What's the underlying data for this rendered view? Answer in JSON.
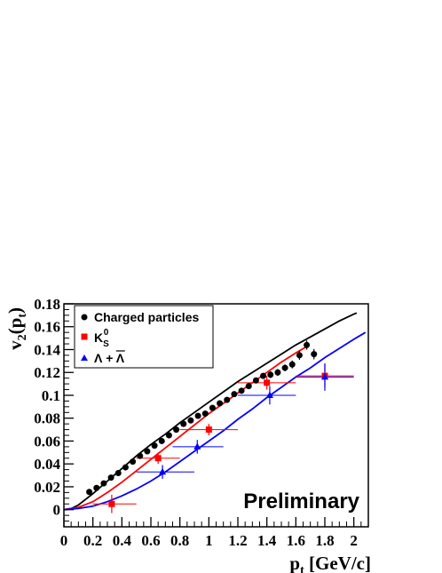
{
  "chart_data": {
    "type": "scatter",
    "annotation": "Preliminary",
    "xlabel": {
      "main": "p",
      "sub": "t",
      "unit": " [GeV/c]"
    },
    "ylabel": {
      "main": "v",
      "sub1": "2",
      "paren_open": "(p",
      "sub2": "t",
      "paren_close": ")"
    },
    "xlim": [
      0,
      2.1
    ],
    "ylim": [
      -0.015,
      0.18
    ],
    "xticks": [
      0,
      0.2,
      0.4,
      0.6,
      0.8,
      1,
      1.2,
      1.4,
      1.6,
      1.8,
      2
    ],
    "xtick_labels": [
      "0",
      "0.2",
      "0.4",
      "0.6",
      "0.8",
      "1",
      "1.2",
      "1.4",
      "1.6",
      "1.8",
      "2"
    ],
    "yticks": [
      0,
      0.02,
      0.04,
      0.06,
      0.08,
      0.1,
      0.12,
      0.14,
      0.16,
      0.18
    ],
    "ytick_labels": [
      "0",
      "0.02",
      "0.04",
      "0.06",
      "0.08",
      "0.1",
      "0.12",
      "0.14",
      "0.16",
      "0.18"
    ],
    "legend_position": "top-left",
    "series": [
      {
        "name": "Charged particles",
        "color": "#000000",
        "marker": "circle",
        "points": [
          {
            "x": 0.175,
            "y": 0.0155,
            "ey": 0.0015
          },
          {
            "x": 0.225,
            "y": 0.019,
            "ey": 0.0015
          },
          {
            "x": 0.275,
            "y": 0.023,
            "ey": 0.0015
          },
          {
            "x": 0.325,
            "y": 0.028,
            "ey": 0.0015
          },
          {
            "x": 0.375,
            "y": 0.032,
            "ey": 0.0015
          },
          {
            "x": 0.425,
            "y": 0.037,
            "ey": 0.0015
          },
          {
            "x": 0.475,
            "y": 0.042,
            "ey": 0.0015
          },
          {
            "x": 0.525,
            "y": 0.047,
            "ey": 0.0015
          },
          {
            "x": 0.575,
            "y": 0.051,
            "ey": 0.0015
          },
          {
            "x": 0.625,
            "y": 0.056,
            "ey": 0.0015
          },
          {
            "x": 0.675,
            "y": 0.06,
            "ey": 0.0015
          },
          {
            "x": 0.725,
            "y": 0.065,
            "ey": 0.0015
          },
          {
            "x": 0.775,
            "y": 0.07,
            "ey": 0.0015
          },
          {
            "x": 0.825,
            "y": 0.075,
            "ey": 0.0015
          },
          {
            "x": 0.875,
            "y": 0.078,
            "ey": 0.0015
          },
          {
            "x": 0.925,
            "y": 0.082,
            "ey": 0.0015
          },
          {
            "x": 0.975,
            "y": 0.084,
            "ey": 0.0015
          },
          {
            "x": 1.025,
            "y": 0.089,
            "ey": 0.0015
          },
          {
            "x": 1.075,
            "y": 0.093,
            "ey": 0.002
          },
          {
            "x": 1.125,
            "y": 0.096,
            "ey": 0.002
          },
          {
            "x": 1.175,
            "y": 0.101,
            "ey": 0.002
          },
          {
            "x": 1.225,
            "y": 0.104,
            "ey": 0.002
          },
          {
            "x": 1.275,
            "y": 0.108,
            "ey": 0.0025
          },
          {
            "x": 1.325,
            "y": 0.113,
            "ey": 0.0025
          },
          {
            "x": 1.375,
            "y": 0.117,
            "ey": 0.0025
          },
          {
            "x": 1.425,
            "y": 0.118,
            "ey": 0.003
          },
          {
            "x": 1.475,
            "y": 0.12,
            "ey": 0.003
          },
          {
            "x": 1.525,
            "y": 0.124,
            "ey": 0.003
          },
          {
            "x": 1.575,
            "y": 0.127,
            "ey": 0.0035
          },
          {
            "x": 1.625,
            "y": 0.135,
            "ey": 0.004
          },
          {
            "x": 1.675,
            "y": 0.144,
            "ey": 0.004
          },
          {
            "x": 1.725,
            "y": 0.136,
            "ey": 0.0045
          }
        ]
      },
      {
        "name": "K_S^0",
        "color": "#ff0000",
        "marker": "square",
        "points": [
          {
            "x": 0.33,
            "y": 0.005,
            "exl": 0.13,
            "exh": 0.17,
            "ey": 0.008
          },
          {
            "x": 0.65,
            "y": 0.045,
            "exl": 0.15,
            "exh": 0.15,
            "ey": 0.005
          },
          {
            "x": 1.0,
            "y": 0.07,
            "exl": 0.2,
            "exh": 0.2,
            "ey": 0.005
          },
          {
            "x": 1.4,
            "y": 0.111,
            "exl": 0.2,
            "exh": 0.2,
            "ey": 0.006
          },
          {
            "x": 1.8,
            "y": 0.117,
            "exl": 0.2,
            "exh": 0.2,
            "ey": 0.01
          }
        ]
      },
      {
        "name": "Λ + anti-Λ",
        "color": "#0000ff",
        "marker": "triangle",
        "points": [
          {
            "x": 0.68,
            "y": 0.033,
            "exl": 0.18,
            "exh": 0.22,
            "ey": 0.006
          },
          {
            "x": 0.92,
            "y": 0.055,
            "exl": 0.17,
            "exh": 0.18,
            "ey": 0.006
          },
          {
            "x": 1.42,
            "y": 0.1,
            "exl": 0.22,
            "exh": 0.18,
            "ey": 0.008
          },
          {
            "x": 1.8,
            "y": 0.116,
            "exl": 0.2,
            "exh": 0.2,
            "ey": 0.012
          }
        ]
      }
    ],
    "curves": [
      {
        "color": "#000000",
        "points": [
          [
            0,
            0
          ],
          [
            0.05,
            0.001
          ],
          [
            0.1,
            0.004
          ],
          [
            0.2,
            0.014
          ],
          [
            0.3,
            0.025
          ],
          [
            0.4,
            0.036
          ],
          [
            0.5,
            0.047
          ],
          [
            0.6,
            0.057
          ],
          [
            0.7,
            0.066
          ],
          [
            0.8,
            0.076
          ],
          [
            0.9,
            0.085
          ],
          [
            1.0,
            0.094
          ],
          [
            1.1,
            0.103
          ],
          [
            1.2,
            0.112
          ],
          [
            1.3,
            0.12
          ],
          [
            1.4,
            0.128
          ],
          [
            1.5,
            0.136
          ],
          [
            1.6,
            0.144
          ],
          [
            1.7,
            0.151
          ],
          [
            1.8,
            0.158
          ],
          [
            1.9,
            0.165
          ],
          [
            2.0,
            0.171
          ],
          [
            2.02,
            0.172
          ]
        ]
      },
      {
        "color": "#ff0000",
        "points": [
          [
            0,
            0
          ],
          [
            0.1,
            0.002
          ],
          [
            0.2,
            0.007
          ],
          [
            0.3,
            0.015
          ],
          [
            0.4,
            0.024
          ],
          [
            0.5,
            0.034
          ],
          [
            0.6,
            0.044
          ],
          [
            0.7,
            0.054
          ],
          [
            0.8,
            0.064
          ],
          [
            0.9,
            0.074
          ],
          [
            1.0,
            0.084
          ],
          [
            1.1,
            0.093
          ],
          [
            1.2,
            0.102
          ],
          [
            1.3,
            0.111
          ],
          [
            1.4,
            0.12
          ],
          [
            1.5,
            0.129
          ],
          [
            1.6,
            0.137
          ],
          [
            1.68,
            0.143
          ]
        ]
      },
      {
        "color": "#0000ff",
        "points": [
          [
            0,
            0
          ],
          [
            0.1,
            0.001
          ],
          [
            0.2,
            0.003
          ],
          [
            0.3,
            0.007
          ],
          [
            0.4,
            0.012
          ],
          [
            0.5,
            0.018
          ],
          [
            0.6,
            0.025
          ],
          [
            0.7,
            0.033
          ],
          [
            0.8,
            0.042
          ],
          [
            0.9,
            0.051
          ],
          [
            1.0,
            0.06
          ],
          [
            1.1,
            0.069
          ],
          [
            1.2,
            0.079
          ],
          [
            1.3,
            0.088
          ],
          [
            1.4,
            0.098
          ],
          [
            1.5,
            0.107
          ],
          [
            1.6,
            0.116
          ],
          [
            1.7,
            0.124
          ],
          [
            1.8,
            0.133
          ],
          [
            1.9,
            0.141
          ],
          [
            2.0,
            0.149
          ],
          [
            2.08,
            0.155
          ]
        ]
      }
    ],
    "legend": {
      "items": [
        {
          "kind": "plain",
          "text": "Charged particles"
        },
        {
          "kind": "k0s",
          "base": "K",
          "sub": "S",
          "sup": "0"
        },
        {
          "kind": "lambda",
          "text": "Λ + ",
          "bar": "Λ"
        }
      ]
    }
  }
}
